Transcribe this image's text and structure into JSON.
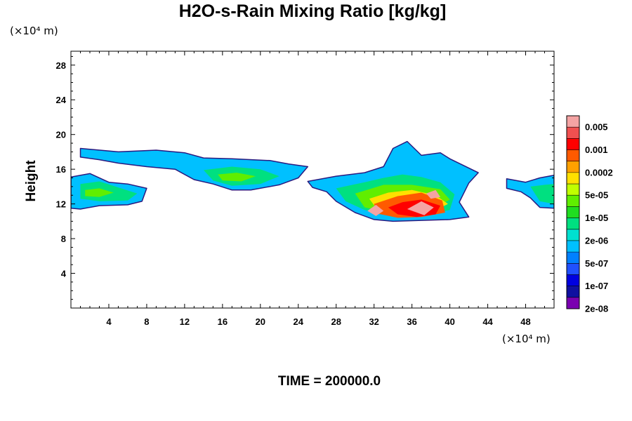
{
  "chart_data": {
    "type": "heatmap",
    "title": "H2O-s-Rain Mixing Ratio [kg/kg]",
    "ylabel": "Height",
    "x_unit_label": "(×10⁴ m)",
    "y_unit_label": "(×10⁴ m)",
    "xlim": [
      0,
      51
    ],
    "ylim": [
      0,
      29.6
    ],
    "x_ticks": [
      4,
      8,
      12,
      16,
      20,
      24,
      28,
      32,
      36,
      40,
      44,
      48
    ],
    "y_ticks": [
      4,
      8,
      12,
      16,
      20,
      24,
      28
    ],
    "grid": false,
    "legend": "colorbar-right",
    "colorbar": {
      "labels": [
        "0.005",
        "0.001",
        "0.0002",
        "5e-05",
        "1e-05",
        "2e-06",
        "5e-07",
        "1e-07",
        "2e-08"
      ],
      "colors": [
        "#f4a3a3",
        "#f05050",
        "#ff0000",
        "#ff5a00",
        "#ffa000",
        "#ffe000",
        "#c0ff00",
        "#60ee00",
        "#20dd20",
        "#00e080",
        "#00e0d0",
        "#00c0ff",
        "#0080ff",
        "#2050ff",
        "#0000e0",
        "#1010a0",
        "#7a00b0"
      ]
    },
    "regions": [
      {
        "level": 5,
        "points": [
          [
            0,
            15.1
          ],
          [
            2,
            15.5
          ],
          [
            4,
            14.5
          ],
          [
            6,
            14.3
          ],
          [
            8,
            13.8
          ],
          [
            7.5,
            12.3
          ],
          [
            6,
            11.9
          ],
          [
            3,
            11.8
          ],
          [
            1,
            11.4
          ],
          [
            0,
            11.5
          ]
        ]
      },
      {
        "level": 5,
        "points": [
          [
            1,
            18.4
          ],
          [
            5,
            18.0
          ],
          [
            9,
            18.2
          ],
          [
            12,
            17.9
          ],
          [
            14,
            17.3
          ],
          [
            17,
            17.2
          ],
          [
            21,
            17.0
          ],
          [
            23,
            16.6
          ],
          [
            25,
            16.3
          ],
          [
            24,
            15.0
          ],
          [
            22,
            14.2
          ],
          [
            19,
            13.6
          ],
          [
            17,
            13.6
          ],
          [
            15,
            14.3
          ],
          [
            13,
            14.8
          ],
          [
            11,
            16.0
          ],
          [
            8,
            16.3
          ],
          [
            5,
            16.7
          ],
          [
            3,
            17.1
          ],
          [
            1,
            17.4
          ]
        ]
      },
      {
        "level": 5,
        "points": [
          [
            25,
            14.6
          ],
          [
            28,
            15.2
          ],
          [
            31,
            15.6
          ],
          [
            33,
            16.3
          ],
          [
            34,
            18.4
          ],
          [
            35.5,
            19.2
          ],
          [
            37,
            17.6
          ],
          [
            39,
            17.9
          ],
          [
            40,
            17.2
          ],
          [
            43,
            15.6
          ],
          [
            42,
            14.4
          ],
          [
            41,
            12.2
          ],
          [
            42,
            10.5
          ],
          [
            40,
            10.2
          ],
          [
            37,
            10.1
          ],
          [
            34,
            10.0
          ],
          [
            32,
            10.2
          ],
          [
            30,
            11.0
          ],
          [
            28,
            12.3
          ],
          [
            27,
            13.4
          ],
          [
            25.5,
            13.9
          ]
        ]
      },
      {
        "level": 5,
        "points": [
          [
            46,
            14.9
          ],
          [
            48,
            14.5
          ],
          [
            49.5,
            15.0
          ],
          [
            51,
            15.3
          ],
          [
            51,
            11.5
          ],
          [
            49.5,
            11.6
          ],
          [
            48.5,
            12.7
          ],
          [
            47.5,
            13.4
          ],
          [
            46,
            13.8
          ]
        ]
      },
      {
        "level": 7,
        "points": [
          [
            1,
            14.3
          ],
          [
            3,
            14.6
          ],
          [
            5,
            13.9
          ],
          [
            7,
            13.2
          ],
          [
            6,
            12.4
          ],
          [
            3,
            12.3
          ],
          [
            1,
            12.6
          ]
        ]
      },
      {
        "level": 7,
        "points": [
          [
            14,
            15.9
          ],
          [
            17,
            16.3
          ],
          [
            20,
            16.0
          ],
          [
            22,
            15.2
          ],
          [
            20,
            14.3
          ],
          [
            17,
            14.1
          ],
          [
            15,
            14.7
          ]
        ]
      },
      {
        "level": 7,
        "points": [
          [
            28,
            13.8
          ],
          [
            31,
            14.5
          ],
          [
            33,
            15.0
          ],
          [
            35,
            15.4
          ],
          [
            37,
            15.1
          ],
          [
            39,
            14.5
          ],
          [
            40.5,
            13.1
          ],
          [
            40,
            11.3
          ],
          [
            37,
            10.6
          ],
          [
            34,
            10.5
          ],
          [
            31,
            11.3
          ],
          [
            29,
            12.3
          ]
        ]
      },
      {
        "level": 7,
        "points": [
          [
            48.5,
            14.0
          ],
          [
            50,
            14.2
          ],
          [
            51,
            14.3
          ],
          [
            51,
            12.0
          ],
          [
            49.5,
            12.3
          ]
        ]
      },
      {
        "level": 9,
        "points": [
          [
            1.5,
            13.6
          ],
          [
            3,
            13.8
          ],
          [
            4.5,
            13.3
          ],
          [
            3,
            12.8
          ],
          [
            1.5,
            12.9
          ]
        ]
      },
      {
        "level": 9,
        "points": [
          [
            15.5,
            15.4
          ],
          [
            17.5,
            15.6
          ],
          [
            19.5,
            15.2
          ],
          [
            18,
            14.6
          ],
          [
            16,
            14.7
          ]
        ]
      },
      {
        "level": 9,
        "points": [
          [
            30,
            13.2
          ],
          [
            33,
            14.2
          ],
          [
            36,
            14.2
          ],
          [
            39,
            13.7
          ],
          [
            40,
            12.5
          ],
          [
            38,
            11.2
          ],
          [
            34,
            10.9
          ],
          [
            31,
            11.6
          ]
        ]
      },
      {
        "level": 11,
        "points": [
          [
            31.5,
            12.6
          ],
          [
            33.5,
            13.3
          ],
          [
            36,
            13.6
          ],
          [
            38.5,
            13.0
          ],
          [
            39.8,
            12.0
          ],
          [
            38,
            11.0
          ],
          [
            35,
            10.6
          ],
          [
            32.5,
            11.1
          ]
        ]
      },
      {
        "level": 13,
        "points": [
          [
            32,
            12.0
          ],
          [
            34.5,
            12.9
          ],
          [
            37,
            13.3
          ],
          [
            39.2,
            12.4
          ],
          [
            39.5,
            11.0
          ],
          [
            37,
            10.5
          ],
          [
            34.5,
            10.4
          ],
          [
            32.3,
            10.9
          ]
        ]
      },
      {
        "level": 14,
        "points": [
          [
            33.5,
            11.6
          ],
          [
            35,
            12.2
          ],
          [
            37,
            12.5
          ],
          [
            39,
            11.8
          ],
          [
            38.5,
            10.8
          ],
          [
            36.5,
            10.5
          ],
          [
            34.5,
            10.8
          ]
        ]
      },
      {
        "level": 16,
        "points": [
          [
            31.3,
            11.2
          ],
          [
            32.2,
            11.9
          ],
          [
            33,
            11.2
          ],
          [
            32.2,
            10.6
          ]
        ]
      },
      {
        "level": 16,
        "points": [
          [
            35.5,
            11.4
          ],
          [
            37,
            12.3
          ],
          [
            38.3,
            11.6
          ],
          [
            37.3,
            10.7
          ]
        ]
      },
      {
        "level": 16,
        "points": [
          [
            37.5,
            13.2
          ],
          [
            38.5,
            13.6
          ],
          [
            39,
            12.8
          ],
          [
            38,
            12.6
          ]
        ]
      }
    ]
  },
  "time_label": "TIME = 200000.0"
}
